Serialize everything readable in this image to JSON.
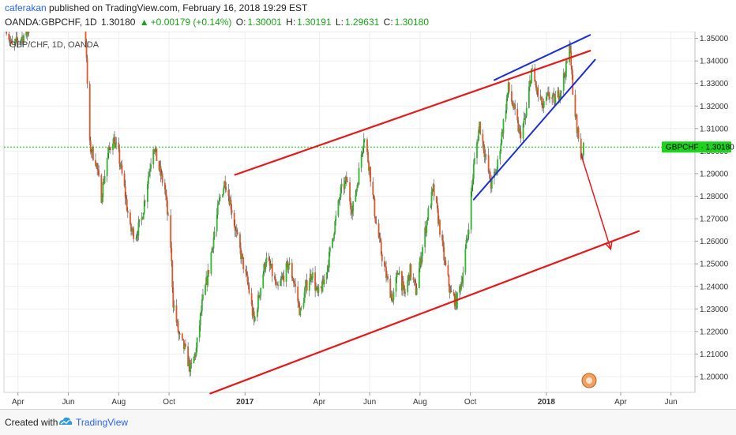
{
  "header": {
    "author": "caferakan",
    "published_text": "published on TradingView.com, February 16, 2018 19:29 EST",
    "symbol": "OANDA:GBPCHF, 1D",
    "last": "1.30180",
    "change_arrow": "▲",
    "change": "+0.00179 (+0.14%)",
    "o_label": "O:",
    "o_value": "1.30001",
    "h_label": "H:",
    "h_value": "1.30191",
    "l_label": "L:",
    "l_value": "1.29631",
    "c_label": "C:",
    "c_value": "1.30180"
  },
  "footer": {
    "created_with": "Created with",
    "brand": "TradingView"
  },
  "colors": {
    "bull": "#2db82d",
    "bear": "#e0582a",
    "channel": "#e3191a",
    "wedge": "#1c2fd6",
    "current_price_line": "#00cc00",
    "price_label_bg": "#1fd21f"
  },
  "chart_data": {
    "type": "candlestick",
    "watermark": "GBP/CHF, 1D, OANDA",
    "current_price_label": {
      "symbol": "GBPCHF",
      "value": "1.30180"
    },
    "y_ticks": [
      "1.35000",
      "1.34000",
      "1.33000",
      "1.32000",
      "1.31000",
      "1.30000",
      "1.29000",
      "1.28000",
      "1.27000",
      "1.26000",
      "1.25000",
      "1.24000",
      "1.23000",
      "1.22000",
      "1.21000",
      "1.20000"
    ],
    "ylim": [
      1.193,
      1.353
    ],
    "x_ticks": [
      {
        "label": "Apr",
        "date": "2016-04-01"
      },
      {
        "label": "Jun",
        "date": "2016-06-01"
      },
      {
        "label": "Aug",
        "date": "2016-08-01"
      },
      {
        "label": "Oct",
        "date": "2016-10-01"
      },
      {
        "label": "2017",
        "date": "2017-01-01",
        "bold": true
      },
      {
        "label": "Apr",
        "date": "2017-04-01"
      },
      {
        "label": "Jun",
        "date": "2017-06-01"
      },
      {
        "label": "Aug",
        "date": "2017-08-01"
      },
      {
        "label": "Oct",
        "date": "2017-10-01"
      },
      {
        "label": "2018",
        "date": "2018-01-01",
        "bold": true
      },
      {
        "label": "Apr",
        "date": "2018-04-01"
      },
      {
        "label": "Jun",
        "date": "2018-06-01"
      }
    ],
    "xlim": [
      "2016-03-15",
      "2018-06-30"
    ],
    "current_price": 1.3018,
    "price_path": [
      [
        "2016-03-18",
        1.355
      ],
      [
        "2016-03-25",
        1.346
      ],
      [
        "2016-04-01",
        1.349
      ],
      [
        "2016-04-08",
        1.351
      ],
      [
        "2016-04-15",
        1.354
      ],
      [
        "2016-06-21",
        1.36
      ],
      [
        "2016-06-23",
        1.339
      ],
      [
        "2016-06-27",
        1.302
      ],
      [
        "2016-07-04",
        1.296
      ],
      [
        "2016-07-11",
        1.28
      ],
      [
        "2016-07-18",
        1.297
      ],
      [
        "2016-07-25",
        1.306
      ],
      [
        "2016-08-01",
        1.298
      ],
      [
        "2016-08-08",
        1.283
      ],
      [
        "2016-08-15",
        1.265
      ],
      [
        "2016-08-22",
        1.263
      ],
      [
        "2016-08-29",
        1.27
      ],
      [
        "2016-09-05",
        1.287
      ],
      [
        "2016-09-12",
        1.303
      ],
      [
        "2016-09-19",
        1.292
      ],
      [
        "2016-09-26",
        1.283
      ],
      [
        "2016-10-03",
        1.258
      ],
      [
        "2016-10-06",
        1.233
      ],
      [
        "2016-10-13",
        1.218
      ],
      [
        "2016-10-20",
        1.212
      ],
      [
        "2016-10-27",
        1.203
      ],
      [
        "2016-11-03",
        1.212
      ],
      [
        "2016-11-10",
        1.232
      ],
      [
        "2016-11-17",
        1.245
      ],
      [
        "2016-11-24",
        1.262
      ],
      [
        "2016-12-01",
        1.278
      ],
      [
        "2016-12-08",
        1.287
      ],
      [
        "2016-12-15",
        1.276
      ],
      [
        "2016-12-22",
        1.262
      ],
      [
        "2016-12-29",
        1.251
      ],
      [
        "2017-01-05",
        1.24
      ],
      [
        "2017-01-12",
        1.224
      ],
      [
        "2017-01-19",
        1.238
      ],
      [
        "2017-01-26",
        1.252
      ],
      [
        "2017-02-02",
        1.247
      ],
      [
        "2017-02-09",
        1.238
      ],
      [
        "2017-02-16",
        1.244
      ],
      [
        "2017-02-23",
        1.25
      ],
      [
        "2017-03-02",
        1.241
      ],
      [
        "2017-03-09",
        1.228
      ],
      [
        "2017-03-16",
        1.24
      ],
      [
        "2017-03-23",
        1.246
      ],
      [
        "2017-03-30",
        1.236
      ],
      [
        "2017-04-06",
        1.241
      ],
      [
        "2017-04-13",
        1.253
      ],
      [
        "2017-04-20",
        1.268
      ],
      [
        "2017-04-27",
        1.282
      ],
      [
        "2017-05-04",
        1.287
      ],
      [
        "2017-05-11",
        1.273
      ],
      [
        "2017-05-18",
        1.288
      ],
      [
        "2017-05-25",
        1.307
      ],
      [
        "2017-06-01",
        1.292
      ],
      [
        "2017-06-08",
        1.27
      ],
      [
        "2017-06-15",
        1.255
      ],
      [
        "2017-06-22",
        1.243
      ],
      [
        "2017-06-29",
        1.234
      ],
      [
        "2017-07-06",
        1.248
      ],
      [
        "2017-07-13",
        1.236
      ],
      [
        "2017-07-20",
        1.247
      ],
      [
        "2017-07-27",
        1.238
      ],
      [
        "2017-08-03",
        1.255
      ],
      [
        "2017-08-10",
        1.271
      ],
      [
        "2017-08-17",
        1.283
      ],
      [
        "2017-08-24",
        1.268
      ],
      [
        "2017-08-31",
        1.25
      ],
      [
        "2017-09-07",
        1.237
      ],
      [
        "2017-09-14",
        1.233
      ],
      [
        "2017-09-21",
        1.244
      ],
      [
        "2017-09-28",
        1.264
      ],
      [
        "2017-10-05",
        1.293
      ],
      [
        "2017-10-12",
        1.312
      ],
      [
        "2017-10-19",
        1.298
      ],
      [
        "2017-10-26",
        1.285
      ],
      [
        "2017-11-02",
        1.292
      ],
      [
        "2017-11-09",
        1.31
      ],
      [
        "2017-11-16",
        1.328
      ],
      [
        "2017-11-23",
        1.318
      ],
      [
        "2017-11-30",
        1.307
      ],
      [
        "2017-12-07",
        1.315
      ],
      [
        "2017-12-14",
        1.336
      ],
      [
        "2017-12-21",
        1.326
      ],
      [
        "2017-12-28",
        1.319
      ],
      [
        "2018-01-04",
        1.325
      ],
      [
        "2018-01-11",
        1.322
      ],
      [
        "2018-01-18",
        1.327
      ],
      [
        "2018-01-25",
        1.337
      ],
      [
        "2018-01-30",
        1.347
      ],
      [
        "2018-02-02",
        1.324
      ],
      [
        "2018-02-07",
        1.311
      ],
      [
        "2018-02-12",
        1.298
      ],
      [
        "2018-02-16",
        1.3018
      ]
    ],
    "channel_upper": [
      [
        "2016-12-20",
        1.2895
      ],
      [
        "2018-02-23",
        1.3445
      ]
    ],
    "channel_lower": [
      [
        "2016-11-20",
        1.1925
      ],
      [
        "2018-04-23",
        1.2645
      ]
    ],
    "wedge_upper": [
      [
        "2017-10-30",
        1.3315
      ],
      [
        "2018-02-23",
        1.3515
      ]
    ],
    "wedge_lower": [
      [
        "2017-10-05",
        1.2785
      ],
      [
        "2018-03-01",
        1.3405
      ]
    ],
    "projection_arrow": [
      [
        "2018-02-12",
        1.2985
      ],
      [
        "2018-03-20",
        1.2565
      ]
    ]
  }
}
